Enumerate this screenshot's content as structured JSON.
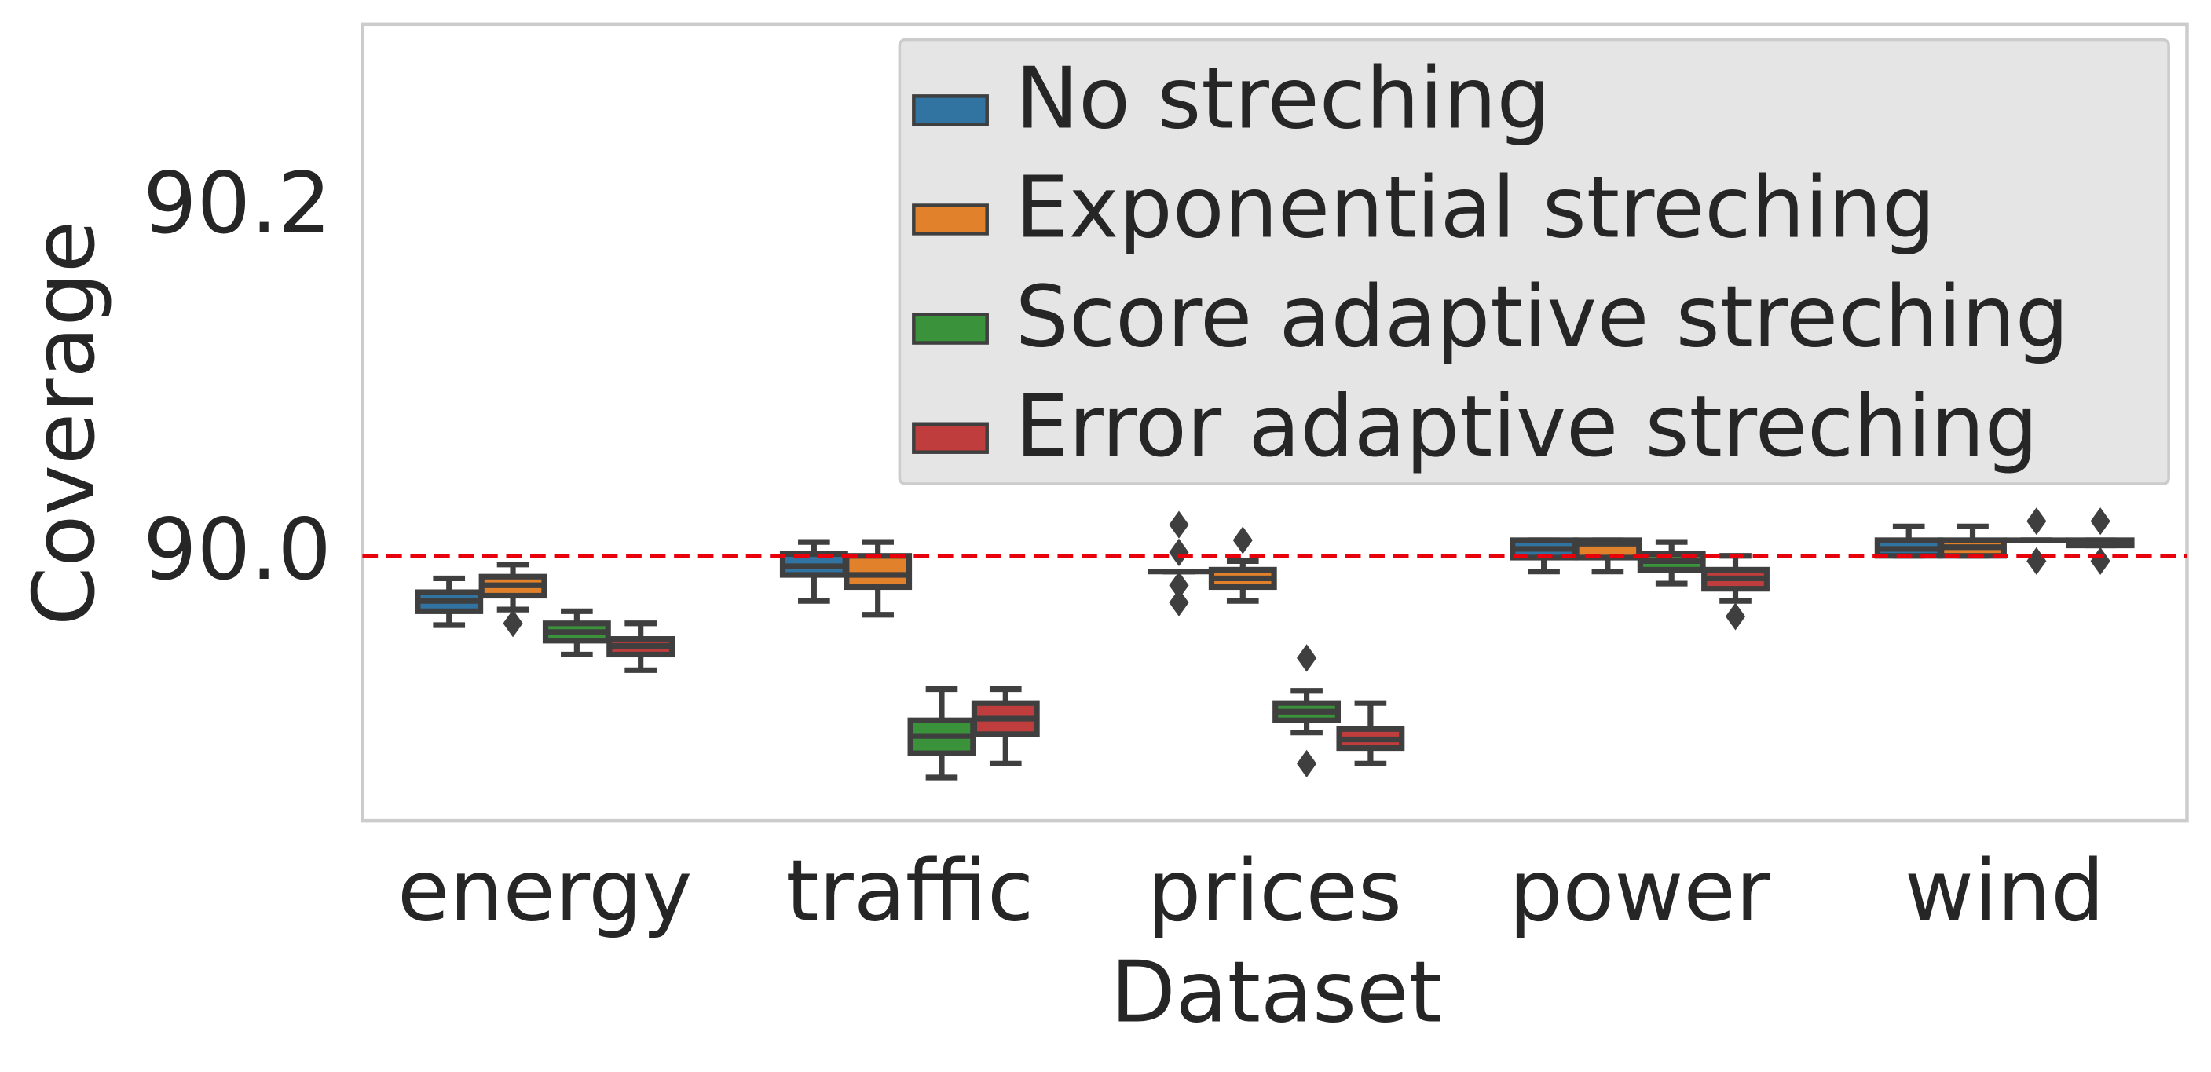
{
  "chart_data": {
    "type": "box",
    "xlabel": "Dataset",
    "ylabel": "Coverage",
    "categories": [
      "energy",
      "traffic",
      "prices",
      "power",
      "wind"
    ],
    "ylim": [
      89.847,
      90.307
    ],
    "yticks": [
      {
        "value": 90.0,
        "label": "90.0"
      },
      90.2
    ],
    "hline": 90.0,
    "hline_color": "#e8000b",
    "legend": "upper right",
    "series": [
      {
        "name": "No streching",
        "color": "#3274a1",
        "boxes": [
          {
            "whislo": 89.96,
            "q1": 89.968,
            "med": 89.974,
            "q3": 89.979,
            "whishi": 89.987,
            "fliers": []
          },
          {
            "whislo": 89.974,
            "q1": 89.989,
            "med": 89.994,
            "q3": 90.001,
            "whishi": 90.008,
            "fliers": []
          },
          {
            "whislo": 89.991,
            "q1": 89.991,
            "med": 89.991,
            "q3": 89.991,
            "whishi": 89.991,
            "fliers": [
              90.018,
              90.002,
              89.983,
              89.973
            ]
          },
          {
            "whislo": 89.991,
            "q1": 89.999,
            "med": 90.004,
            "q3": 90.009,
            "whishi": 90.009,
            "fliers": []
          },
          {
            "whislo": 90.0,
            "q1": 90.0,
            "med": 90.004,
            "q3": 90.009,
            "whishi": 90.017,
            "fliers": []
          }
        ]
      },
      {
        "name": "Exponential streching",
        "color": "#e1812c",
        "boxes": [
          {
            "whislo": 89.969,
            "q1": 89.977,
            "med": 89.983,
            "q3": 89.988,
            "whishi": 89.995,
            "fliers": [
              89.961
            ]
          },
          {
            "whislo": 89.966,
            "q1": 89.982,
            "med": 89.989,
            "q3": 90.0,
            "whishi": 90.008,
            "fliers": []
          },
          {
            "whislo": 89.974,
            "q1": 89.982,
            "med": 89.987,
            "q3": 89.992,
            "whishi": 89.997,
            "fliers": [
              90.009
            ]
          },
          {
            "whislo": 89.991,
            "q1": 89.999,
            "med": 90.007,
            "q3": 90.009,
            "whishi": 90.009,
            "fliers": []
          },
          {
            "whislo": 90.0,
            "q1": 90.0,
            "med": 90.005,
            "q3": 90.009,
            "whishi": 90.017,
            "fliers": []
          }
        ]
      },
      {
        "name": "Score adaptive streching",
        "color": "#3a923a",
        "boxes": [
          {
            "whislo": 89.943,
            "q1": 89.951,
            "med": 89.956,
            "q3": 89.961,
            "whishi": 89.968,
            "fliers": []
          },
          {
            "whislo": 89.872,
            "q1": 89.886,
            "med": 89.896,
            "q3": 89.905,
            "whishi": 89.923,
            "fliers": []
          },
          {
            "whislo": 89.898,
            "q1": 89.905,
            "med": 89.91,
            "q3": 89.915,
            "whishi": 89.922,
            "fliers": [
              89.941,
              89.88
            ]
          },
          {
            "whislo": 89.984,
            "q1": 89.992,
            "med": 89.997,
            "q3": 90.001,
            "whishi": 90.008,
            "fliers": []
          },
          {
            "whislo": 90.009,
            "q1": 90.009,
            "med": 90.009,
            "q3": 90.009,
            "whishi": 90.009,
            "fliers": [
              90.02,
              89.997
            ]
          }
        ]
      },
      {
        "name": "Error adaptive streching",
        "color": "#c03d3e",
        "boxes": [
          {
            "whislo": 89.934,
            "q1": 89.943,
            "med": 89.948,
            "q3": 89.952,
            "whishi": 89.961,
            "fliers": []
          },
          {
            "whislo": 89.88,
            "q1": 89.897,
            "med": 89.906,
            "q3": 89.915,
            "whishi": 89.923,
            "fliers": []
          },
          {
            "whislo": 89.88,
            "q1": 89.889,
            "med": 89.894,
            "q3": 89.9,
            "whishi": 89.915,
            "fliers": []
          },
          {
            "whislo": 89.974,
            "q1": 89.981,
            "med": 89.987,
            "q3": 89.992,
            "whishi": 90.0,
            "fliers": [
              89.965
            ]
          },
          {
            "whislo": 90.006,
            "q1": 90.006,
            "med": 90.007,
            "q3": 90.009,
            "whishi": 90.009,
            "fliers": [
              90.02,
              89.997
            ]
          }
        ]
      }
    ]
  }
}
